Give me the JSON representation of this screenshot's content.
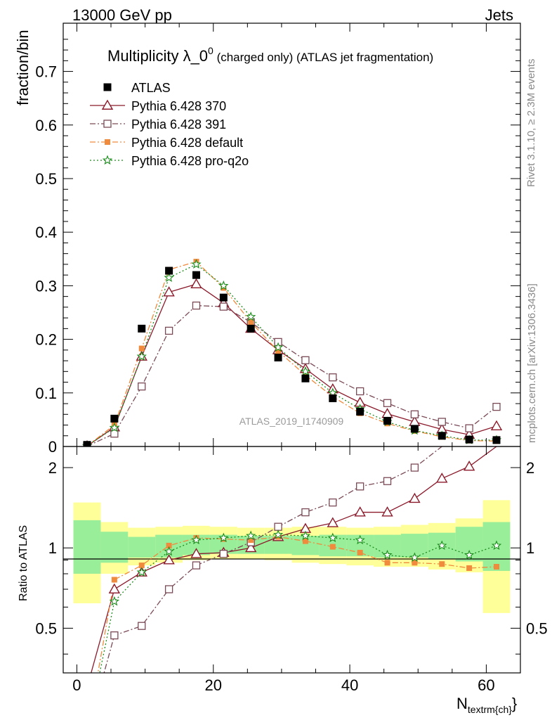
{
  "header": {
    "left": "13000 GeV pp",
    "right": "Jets"
  },
  "side_text": {
    "rivet": "Rivet 3.1.10, ≥ 2.3M events",
    "mcplots": "mcplots.cern.ch [arXiv:1306.3436]"
  },
  "watermark": "ATLAS_2019_I1740909",
  "chart_data": {
    "type": "scatter",
    "title": "Multiplicity λ_0^0 (charged only) (ATLAS jet fragmentation)",
    "title_parts": {
      "main": "Multiplicity λ_0",
      "sup": "0",
      "rest": " (charged only) (ATLAS jet fragmentation)"
    },
    "xlabel": "N_textrm{ch}",
    "xlabel_parts": {
      "main": "N",
      "sub": "textrm{ch}",
      "close": "}"
    },
    "ylabel": "fraction/bin",
    "ratio_ylabel": "Ratio to ATLAS",
    "xlim": [
      -2,
      65
    ],
    "ylim": [
      0,
      0.79
    ],
    "ratio_ylim": [
      0.34,
      2.4
    ],
    "x_ticks": [
      0,
      20,
      40,
      60
    ],
    "y_ticks": [
      0,
      0.1,
      0.2,
      0.3,
      0.4,
      0.5,
      0.6,
      0.7
    ],
    "y_tick_labels": [
      "0",
      "0.1",
      "0.2",
      "0.3",
      "0.4",
      "0.5",
      "0.6",
      "0.7"
    ],
    "ratio_ticks": [
      0.5,
      1,
      2
    ],
    "ratio_tick_labels": [
      "0.5",
      "1",
      "2"
    ],
    "x": [
      1.5,
      5.5,
      9.5,
      13.5,
      17.5,
      21.5,
      25.5,
      29.5,
      33.5,
      37.5,
      41.5,
      45.5,
      49.5,
      53.5,
      57.5,
      61.5
    ],
    "bin_edges": [
      -0.5,
      3.5,
      7.5,
      11.5,
      15.5,
      19.5,
      23.5,
      27.5,
      31.5,
      35.5,
      39.5,
      43.5,
      47.5,
      51.5,
      55.5,
      59.5,
      63.5
    ],
    "data": {
      "name": "ATLAS",
      "values": [
        0.003,
        0.052,
        0.22,
        0.328,
        0.32,
        0.278,
        0.22,
        0.166,
        0.127,
        0.09,
        0.065,
        0.048,
        0.033,
        0.02,
        0.013,
        0.012
      ],
      "band_yellow": [
        [
          0.62,
          1.48
        ],
        [
          0.8,
          1.25
        ],
        [
          0.86,
          1.19
        ],
        [
          0.88,
          1.2
        ],
        [
          0.9,
          1.21
        ],
        [
          0.91,
          1.2
        ],
        [
          0.91,
          1.19
        ],
        [
          0.9,
          1.19
        ],
        [
          0.88,
          1.2
        ],
        [
          0.87,
          1.2
        ],
        [
          0.86,
          1.19
        ],
        [
          0.85,
          1.2
        ],
        [
          0.85,
          1.22
        ],
        [
          0.83,
          1.24
        ],
        [
          0.81,
          1.29
        ],
        [
          0.57,
          1.51
        ]
      ],
      "band_green": [
        [
          0.8,
          1.27
        ],
        [
          0.88,
          1.15
        ],
        [
          0.92,
          1.1
        ],
        [
          0.92,
          1.12
        ],
        [
          0.94,
          1.12
        ],
        [
          0.95,
          1.12
        ],
        [
          0.95,
          1.11
        ],
        [
          0.95,
          1.11
        ],
        [
          0.94,
          1.11
        ],
        [
          0.93,
          1.12
        ],
        [
          0.93,
          1.12
        ],
        [
          0.92,
          1.12
        ],
        [
          0.92,
          1.13
        ],
        [
          0.91,
          1.14
        ],
        [
          0.89,
          1.2
        ],
        [
          0.82,
          1.25
        ]
      ]
    },
    "series": [
      {
        "name": "Pythia 6.428 370",
        "color": "#8b1a2b",
        "dash": "",
        "marker": "triangle-open",
        "values": [
          0.001,
          0.036,
          0.168,
          0.288,
          0.303,
          0.268,
          0.22,
          0.18,
          0.145,
          0.107,
          0.082,
          0.061,
          0.046,
          0.032,
          0.022,
          0.038
        ],
        "ratio": [
          0.3,
          0.7,
          0.81,
          0.9,
          0.95,
          0.96,
          1.0,
          1.1,
          1.18,
          1.24,
          1.36,
          1.36,
          1.53,
          1.82,
          2.02,
          2.4
        ]
      },
      {
        "name": "Pythia 6.428 391",
        "color": "#7a4a56",
        "dash": "8,3,2,3",
        "marker": "square-open",
        "values": [
          0.0005,
          0.024,
          0.112,
          0.216,
          0.263,
          0.261,
          0.232,
          0.195,
          0.161,
          0.129,
          0.103,
          0.081,
          0.06,
          0.046,
          0.034,
          0.074
        ],
        "ratio": [
          0.2,
          0.47,
          0.51,
          0.7,
          0.86,
          0.95,
          1.05,
          1.2,
          1.36,
          1.48,
          1.7,
          1.78,
          2.0,
          2.4,
          2.6,
          3.0
        ]
      },
      {
        "name": "Pythia 6.428 default",
        "color": "#f08a3c",
        "dash": "8,3,2,3",
        "marker": "square-filled",
        "values": [
          0.001,
          0.04,
          0.183,
          0.33,
          0.345,
          0.296,
          0.232,
          0.178,
          0.133,
          0.093,
          0.062,
          0.043,
          0.029,
          0.018,
          0.011,
          0.01
        ],
        "ratio": [
          0.2,
          0.76,
          0.86,
          1.02,
          1.09,
          1.08,
          1.07,
          1.1,
          1.06,
          1.01,
          0.96,
          0.88,
          0.88,
          0.87,
          0.84,
          0.85
        ]
      },
      {
        "name": "Pythia 6.428 pro-q2o",
        "color": "#1a8c1a",
        "dash": "2,3",
        "marker": "star",
        "values": [
          0.001,
          0.035,
          0.168,
          0.315,
          0.34,
          0.3,
          0.242,
          0.185,
          0.14,
          0.1,
          0.07,
          0.046,
          0.03,
          0.02,
          0.012,
          0.012
        ],
        "ratio": [
          0.2,
          0.63,
          0.81,
          0.97,
          1.07,
          1.09,
          1.11,
          1.12,
          1.11,
          1.09,
          1.07,
          0.94,
          0.92,
          1.02,
          0.94,
          1.02
        ]
      }
    ],
    "legend_position": "top-left",
    "grid": false
  }
}
